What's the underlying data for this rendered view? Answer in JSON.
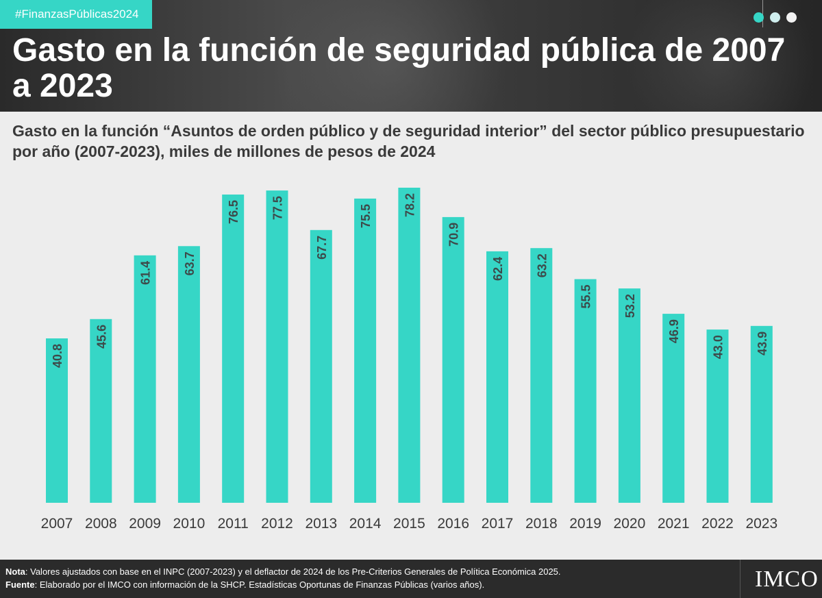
{
  "header": {
    "hashtag": "#FinanzasPúblicas2024",
    "title": "Gasto en la función de seguridad pública de 2007 a 2023",
    "dots": [
      "#36d6c6",
      "#cfeeee",
      "#f2f2f2"
    ]
  },
  "subtitle": "Gasto en la función “Asuntos de orden público y de seguridad interior” del sector público presupuestario por año (2007-2023), miles de millones de pesos de 2024",
  "chart_data": {
    "type": "bar",
    "categories": [
      "2007",
      "2008",
      "2009",
      "2010",
      "2011",
      "2012",
      "2013",
      "2014",
      "2015",
      "2016",
      "2017",
      "2018",
      "2019",
      "2020",
      "2021",
      "2022",
      "2023"
    ],
    "values": [
      40.8,
      45.6,
      61.4,
      63.7,
      76.5,
      77.5,
      67.7,
      75.5,
      78.2,
      70.9,
      62.4,
      63.2,
      55.5,
      53.2,
      46.9,
      43.0,
      43.9
    ],
    "value_labels": [
      "40.8",
      "45.6",
      "61.4",
      "63.7",
      "76.5",
      "77.5",
      "67.7",
      "75.5",
      "78.2",
      "70.9",
      "62.4",
      "63.2",
      "55.5",
      "53.2",
      "46.9",
      "43.0",
      "43.9"
    ],
    "title": "",
    "xlabel": "",
    "ylabel": "",
    "ylim": [
      0,
      78.2
    ],
    "grid": false,
    "bar_color": "#36d6c6",
    "label_color": "#3d4a4a"
  },
  "footer": {
    "nota_label": "Nota",
    "nota_text": ": Valores ajustados con base en el INPC (2007-2023) y el deflactor de 2024 de los Pre-Criterios Generales de Política Económica 2025.",
    "fuente_label": "Fuente",
    "fuente_text": ": Elaborado por el IMCO con información de la SHCP. Estadísticas Oportunas de Finanzas Públicas (varios años).",
    "logo": "IMCO"
  }
}
